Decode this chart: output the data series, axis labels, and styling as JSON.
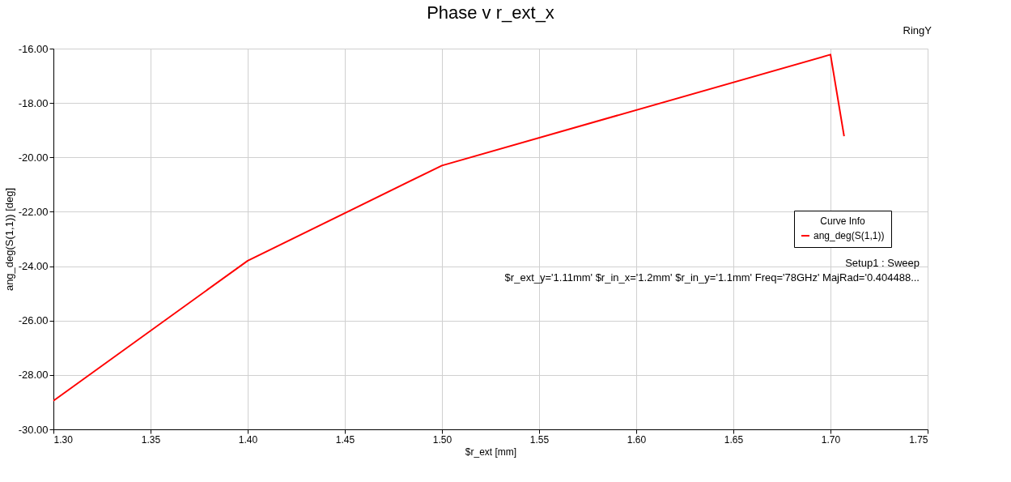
{
  "chart_data": {
    "type": "line",
    "title": "Phase v r_ext_x",
    "xlabel": "$r_ext [mm]",
    "ylabel": "ang_deg(S(1,1)) [deg]",
    "legend_title": "Curve Info",
    "legend": "right",
    "x": [
      1.3,
      1.4,
      1.5,
      1.7,
      1.707
    ],
    "series": [
      {
        "name": "ang_deg(S(1,1))",
        "color": "#ff0000",
        "values": [
          -28.95,
          -23.8,
          -20.3,
          -16.22,
          -19.22
        ]
      }
    ],
    "xlim": [
      1.3,
      1.75
    ],
    "xticks": [
      {
        "value": 1.3,
        "label": "1.30"
      },
      {
        "value": 1.35,
        "label": "1.35"
      },
      {
        "value": 1.4,
        "label": "1.40"
      },
      {
        "value": 1.45,
        "label": "1.45"
      },
      {
        "value": 1.5,
        "label": "1.50"
      },
      {
        "value": 1.55,
        "label": "1.55"
      },
      {
        "value": 1.6,
        "label": "1.60"
      },
      {
        "value": 1.65,
        "label": "1.65"
      },
      {
        "value": 1.7,
        "label": "1.70"
      },
      {
        "value": 1.75,
        "label": "1.75"
      }
    ],
    "ylim": [
      -30,
      -16
    ],
    "yticks": [
      {
        "value": -30,
        "label": "-30.00"
      },
      {
        "value": -28,
        "label": "-28.00"
      },
      {
        "value": -26,
        "label": "-26.00"
      },
      {
        "value": -24,
        "label": "-24.00"
      },
      {
        "value": -22,
        "label": "-22.00"
      },
      {
        "value": -20,
        "label": "-20.00"
      },
      {
        "value": -18,
        "label": "-18.00"
      },
      {
        "value": -16,
        "label": "-16.00"
      }
    ],
    "grid": true,
    "marker": "none",
    "line_style": "solid",
    "annotations": [
      "Setup1 : Sweep",
      "$r_ext_y='1.11mm' $r_in_x='1.2mm' $r_in_y='1.1mm' Freq='78GHz' MajRad='0.404488...",
      "RingY"
    ]
  }
}
